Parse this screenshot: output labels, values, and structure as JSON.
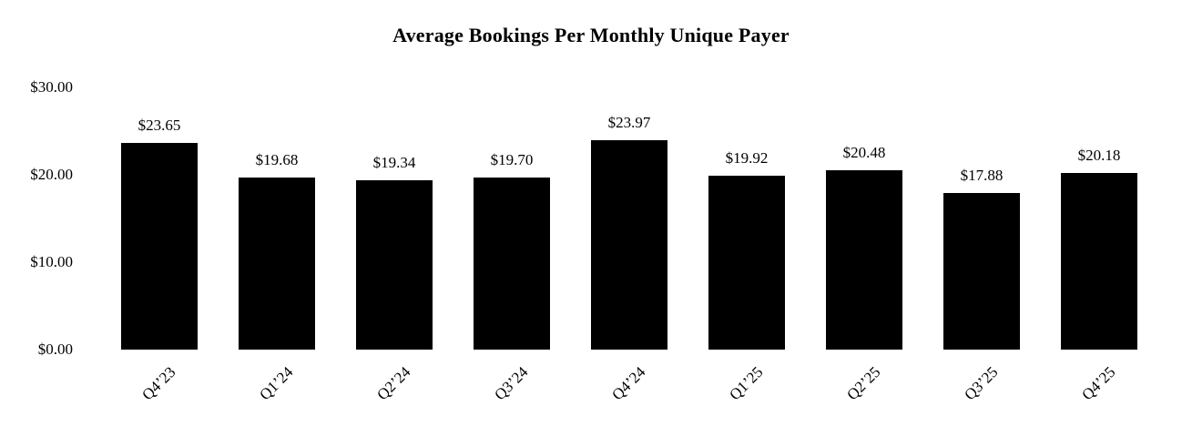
{
  "chart_data": {
    "type": "bar",
    "title": "Average Bookings Per Monthly Unique Payer",
    "categories": [
      "Q4’23",
      "Q1’24",
      "Q2’24",
      "Q3’24",
      "Q4’24",
      "Q1’25",
      "Q2’25",
      "Q3’25",
      "Q4’25"
    ],
    "values": [
      23.65,
      19.68,
      19.34,
      19.7,
      23.97,
      19.92,
      20.48,
      17.88,
      20.18
    ],
    "value_labels": [
      "$23.65",
      "$19.68",
      "$19.34",
      "$19.70",
      "$23.97",
      "$19.92",
      "$20.48",
      "$17.88",
      "$20.18"
    ],
    "y_ticks": [
      "$0.00",
      "$10.00",
      "$20.00",
      "$30.00"
    ],
    "ylim": [
      0,
      30
    ],
    "xlabel": "",
    "ylabel": "",
    "grid": false,
    "legend": null,
    "bar_color": "#000000",
    "background_color": "#ffffff",
    "text_color": "#000000"
  }
}
